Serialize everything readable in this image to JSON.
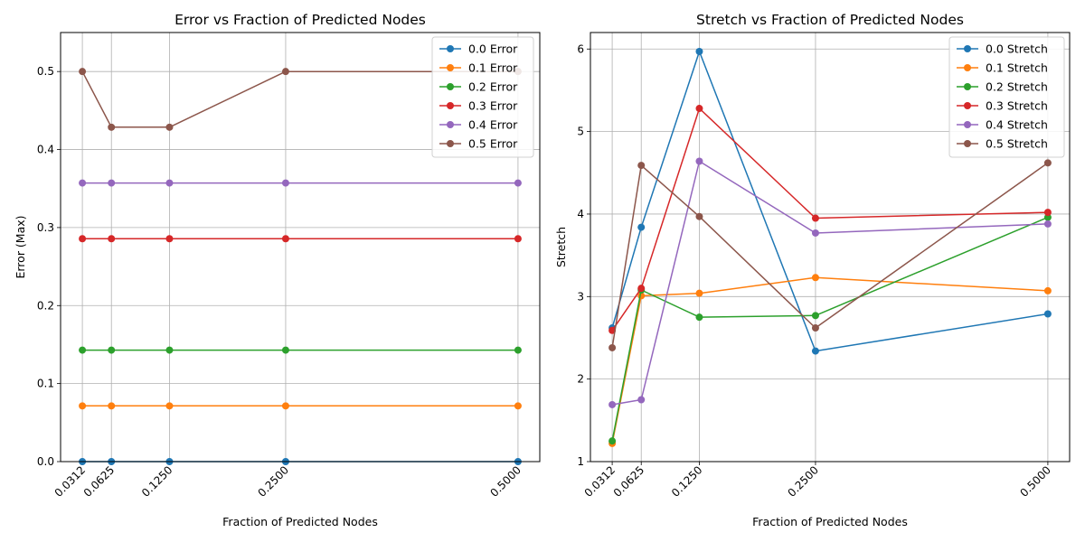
{
  "chart_data": [
    {
      "type": "line",
      "title": "Error vs Fraction of Predicted Nodes",
      "xlabel": "Fraction of Predicted Nodes",
      "ylabel": "Error (Max)",
      "x": [
        0.03125,
        0.0625,
        0.125,
        0.25,
        0.5
      ],
      "xticks": [
        "0.0312",
        "0.0625",
        "0.1250",
        "0.2500",
        "0.5000"
      ],
      "ylim": [
        0,
        0.55
      ],
      "yticks": [
        "0.0",
        "0.1",
        "0.2",
        "0.3",
        "0.4",
        "0.5"
      ],
      "grid": true,
      "legend_position": "upper-right",
      "series": [
        {
          "name": "0.0 Error",
          "color": "#1f77b4",
          "values": [
            0.0,
            0.0,
            0.0,
            0.0,
            0.0
          ]
        },
        {
          "name": "0.1 Error",
          "color": "#ff7f0e",
          "values": [
            0.0714,
            0.0714,
            0.0714,
            0.0714,
            0.0714
          ]
        },
        {
          "name": "0.2 Error",
          "color": "#2ca02c",
          "values": [
            0.1429,
            0.1429,
            0.1429,
            0.1429,
            0.1429
          ]
        },
        {
          "name": "0.3 Error",
          "color": "#d62728",
          "values": [
            0.2857,
            0.2857,
            0.2857,
            0.2857,
            0.2857
          ]
        },
        {
          "name": "0.4 Error",
          "color": "#9467bd",
          "values": [
            0.3571,
            0.3571,
            0.3571,
            0.3571,
            0.3571
          ]
        },
        {
          "name": "0.5 Error",
          "color": "#8c564b",
          "values": [
            0.5,
            0.4286,
            0.4286,
            0.5,
            0.5
          ]
        }
      ]
    },
    {
      "type": "line",
      "title": "Stretch vs Fraction of Predicted Nodes",
      "xlabel": "Fraction of Predicted Nodes",
      "ylabel": "Stretch",
      "x": [
        0.03125,
        0.0625,
        0.125,
        0.25,
        0.5
      ],
      "xticks": [
        "0.0312",
        "0.0625",
        "0.1250",
        "0.2500",
        "0.5000"
      ],
      "ylim": [
        1,
        6.2
      ],
      "yticks": [
        "1",
        "2",
        "3",
        "4",
        "5",
        "6"
      ],
      "grid": true,
      "legend_position": "upper-right",
      "series": [
        {
          "name": "0.0 Stretch",
          "color": "#1f77b4",
          "values": [
            2.62,
            3.84,
            5.97,
            2.34,
            2.79
          ]
        },
        {
          "name": "0.1 Stretch",
          "color": "#ff7f0e",
          "values": [
            1.22,
            3.01,
            3.04,
            3.23,
            3.07
          ]
        },
        {
          "name": "0.2 Stretch",
          "color": "#2ca02c",
          "values": [
            1.25,
            3.08,
            2.75,
            2.77,
            3.96
          ]
        },
        {
          "name": "0.3 Stretch",
          "color": "#d62728",
          "values": [
            2.59,
            3.1,
            5.28,
            3.95,
            4.02
          ]
        },
        {
          "name": "0.4 Stretch",
          "color": "#9467bd",
          "values": [
            1.69,
            1.75,
            4.64,
            3.77,
            3.88
          ]
        },
        {
          "name": "0.5 Stretch",
          "color": "#8c564b",
          "values": [
            2.38,
            4.59,
            3.97,
            2.62,
            4.62
          ]
        }
      ]
    }
  ]
}
